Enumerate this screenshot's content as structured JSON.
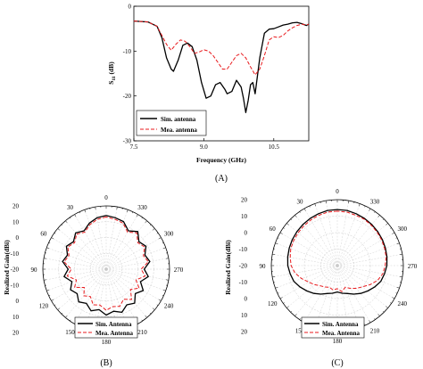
{
  "colors": {
    "sim": "#000000",
    "mea": "#e8191c",
    "grid": "#c8c8c8",
    "axis": "#000000"
  },
  "chart_data": [
    {
      "id": "A",
      "type": "line",
      "panel_label": "(A)",
      "xlabel": "Frequency (GHz)",
      "ylabel": "S11 (dB)",
      "ylabel_main": "S",
      "ylabel_sub": "11",
      "ylabel_unit": " (dB)",
      "xlim": [
        7.5,
        11.25
      ],
      "ylim": [
        -30,
        0
      ],
      "xticks": [
        7.5,
        9.0,
        10.5
      ],
      "xtick_labels": [
        "7.5",
        "9.0",
        "10.5"
      ],
      "yticks": [
        0,
        -10,
        -20,
        -30
      ],
      "ytick_labels": [
        "0",
        "-10",
        "-20",
        "-30"
      ],
      "legend_position": "bottom-left",
      "series": [
        {
          "name": "Sim. antenna",
          "style": "solid",
          "x": [
            7.5,
            7.8,
            8.0,
            8.1,
            8.2,
            8.3,
            8.35,
            8.45,
            8.55,
            8.65,
            8.75,
            8.85,
            8.95,
            9.05,
            9.15,
            9.25,
            9.35,
            9.45,
            9.5,
            9.6,
            9.7,
            9.8,
            9.85,
            9.9,
            9.95,
            10.0,
            10.05,
            10.1,
            10.15,
            10.2,
            10.3,
            10.4,
            10.5,
            10.6,
            10.7,
            10.8,
            10.9,
            11.0,
            11.1,
            11.2,
            11.25
          ],
          "y": [
            -3.3,
            -3.5,
            -4.5,
            -7,
            -11.5,
            -14,
            -14.5,
            -12,
            -8.7,
            -8.2,
            -9,
            -12,
            -17,
            -20.5,
            -20,
            -17.5,
            -17,
            -18.5,
            -19.5,
            -19,
            -16.5,
            -18,
            -20.5,
            -23.7,
            -21,
            -17.5,
            -17,
            -19.5,
            -15.5,
            -11.5,
            -6,
            -5.1,
            -5,
            -4.6,
            -4.2,
            -4,
            -3.7,
            -3.6,
            -3.9,
            -4.3,
            -4
          ]
        },
        {
          "name": "Mea. antenna",
          "style": "dashed",
          "x": [
            7.5,
            7.8,
            8.0,
            8.1,
            8.2,
            8.3,
            8.4,
            8.5,
            8.6,
            8.7,
            8.8,
            8.9,
            9.0,
            9.1,
            9.2,
            9.3,
            9.4,
            9.5,
            9.6,
            9.7,
            9.8,
            9.9,
            10.0,
            10.1,
            10.2,
            10.3,
            10.4,
            10.5,
            10.6,
            10.7,
            10.8,
            10.9,
            11.0,
            11.1,
            11.2,
            11.25
          ],
          "y": [
            -3.3,
            -3.5,
            -4.5,
            -6.5,
            -8.5,
            -9.8,
            -8.5,
            -7.5,
            -7.8,
            -9,
            -10.5,
            -10.2,
            -9.7,
            -10,
            -11,
            -12.5,
            -14,
            -14,
            -12.5,
            -11,
            -10.5,
            -11.5,
            -13.5,
            -15.3,
            -14,
            -11,
            -7.5,
            -6.8,
            -7,
            -6.5,
            -5.5,
            -4.8,
            -4.3,
            -4,
            -4.2,
            -4
          ]
        }
      ]
    },
    {
      "id": "B",
      "type": "polar",
      "panel_label": "(B)",
      "radial_label": "Realized Gain(dBi)",
      "rlim": [
        -20,
        20
      ],
      "radial_ticks": [
        20,
        10,
        0,
        -10,
        -20,
        -10,
        0,
        10,
        20
      ],
      "angle_ticks": [
        0,
        30,
        60,
        90,
        120,
        150,
        180,
        210,
        240,
        270,
        300,
        330
      ],
      "angle_tick_labels": [
        "0",
        "30",
        "60",
        "90",
        "120",
        "150",
        "180",
        "210",
        "240",
        "270",
        "300",
        "330"
      ],
      "legend_position": "bottom-right",
      "series": [
        {
          "name": "Sim. Antenna",
          "style": "solid",
          "angle_deg": [
            0,
            10,
            20,
            30,
            40,
            50,
            60,
            70,
            80,
            90,
            100,
            110,
            120,
            130,
            140,
            150,
            160,
            170,
            180,
            190,
            200,
            210,
            220,
            230,
            240,
            250,
            260,
            270,
            280,
            290,
            300,
            310,
            320,
            330,
            340,
            350
          ],
          "gain_dbi": [
            14,
            13,
            11,
            8,
            10,
            7,
            9,
            6,
            8,
            4,
            7,
            3,
            6,
            4,
            7,
            5,
            8,
            6,
            9,
            7,
            9,
            6,
            8,
            4,
            7,
            3,
            7,
            4,
            8,
            6,
            9,
            7,
            11,
            8,
            12,
            13
          ]
        },
        {
          "name": "Mea. Antenna",
          "style": "dashed",
          "angle_deg": [
            0,
            10,
            20,
            30,
            40,
            50,
            60,
            70,
            80,
            90,
            100,
            110,
            120,
            130,
            140,
            150,
            160,
            170,
            180,
            190,
            200,
            210,
            220,
            230,
            240,
            250,
            260,
            270,
            280,
            290,
            300,
            310,
            320,
            330,
            340,
            350
          ],
          "gain_dbi": [
            13,
            12,
            10,
            7,
            9,
            6,
            8,
            5,
            7,
            2,
            5,
            0,
            3,
            -2,
            2,
            0,
            4,
            3,
            6,
            4,
            5,
            2,
            5,
            0,
            4,
            0,
            5,
            2,
            7,
            5,
            8,
            6,
            10,
            7,
            11,
            12
          ]
        }
      ]
    },
    {
      "id": "C",
      "type": "polar",
      "panel_label": "(C)",
      "radial_label": "Realized Gain(dBi)",
      "rlim": [
        -20,
        20
      ],
      "radial_ticks": [
        20,
        10,
        0,
        -10,
        -20,
        -10,
        0,
        10,
        20
      ],
      "angle_ticks": [
        0,
        30,
        60,
        90,
        120,
        150,
        180,
        210,
        240,
        270,
        300,
        330
      ],
      "angle_tick_labels": [
        "0",
        "30",
        "60",
        "90",
        "120",
        "150",
        "180",
        "210",
        "240",
        "270",
        "300",
        "330"
      ],
      "legend_position": "bottom-right",
      "series": [
        {
          "name": "Sim. Antenna",
          "style": "solid",
          "angle_deg": [
            0,
            10,
            20,
            30,
            40,
            50,
            60,
            70,
            80,
            90,
            100,
            110,
            120,
            130,
            140,
            150,
            160,
            170,
            180,
            190,
            200,
            210,
            220,
            230,
            240,
            250,
            260,
            270,
            280,
            290,
            300,
            310,
            320,
            330,
            340,
            350
          ],
          "gain_dbi": [
            14,
            14,
            13.5,
            13,
            12.5,
            12,
            11.5,
            11,
            10.5,
            10,
            9,
            8,
            6,
            4,
            2,
            0,
            -2,
            -3,
            -4,
            -3,
            -2,
            0,
            2,
            4,
            6,
            8,
            9,
            10,
            10.5,
            11,
            11.5,
            12,
            12.5,
            13,
            13.5,
            14
          ]
        },
        {
          "name": "Mea. Antenna",
          "style": "dashed",
          "angle_deg": [
            0,
            10,
            20,
            30,
            40,
            50,
            60,
            70,
            80,
            90,
            100,
            110,
            120,
            130,
            140,
            150,
            160,
            170,
            180,
            190,
            200,
            210,
            220,
            230,
            240,
            250,
            260,
            270,
            280,
            290,
            300,
            310,
            320,
            330,
            340,
            350
          ],
          "gain_dbi": [
            13,
            13,
            12.5,
            12,
            11.5,
            11,
            10.5,
            10,
            9,
            8,
            6,
            3,
            0,
            -2,
            -4,
            -5,
            -6,
            -5,
            -6,
            -4,
            -6,
            -4,
            -2,
            0,
            3,
            6,
            8,
            9,
            10,
            10.5,
            11,
            11.5,
            12,
            12.5,
            12.5,
            13
          ]
        }
      ]
    }
  ]
}
